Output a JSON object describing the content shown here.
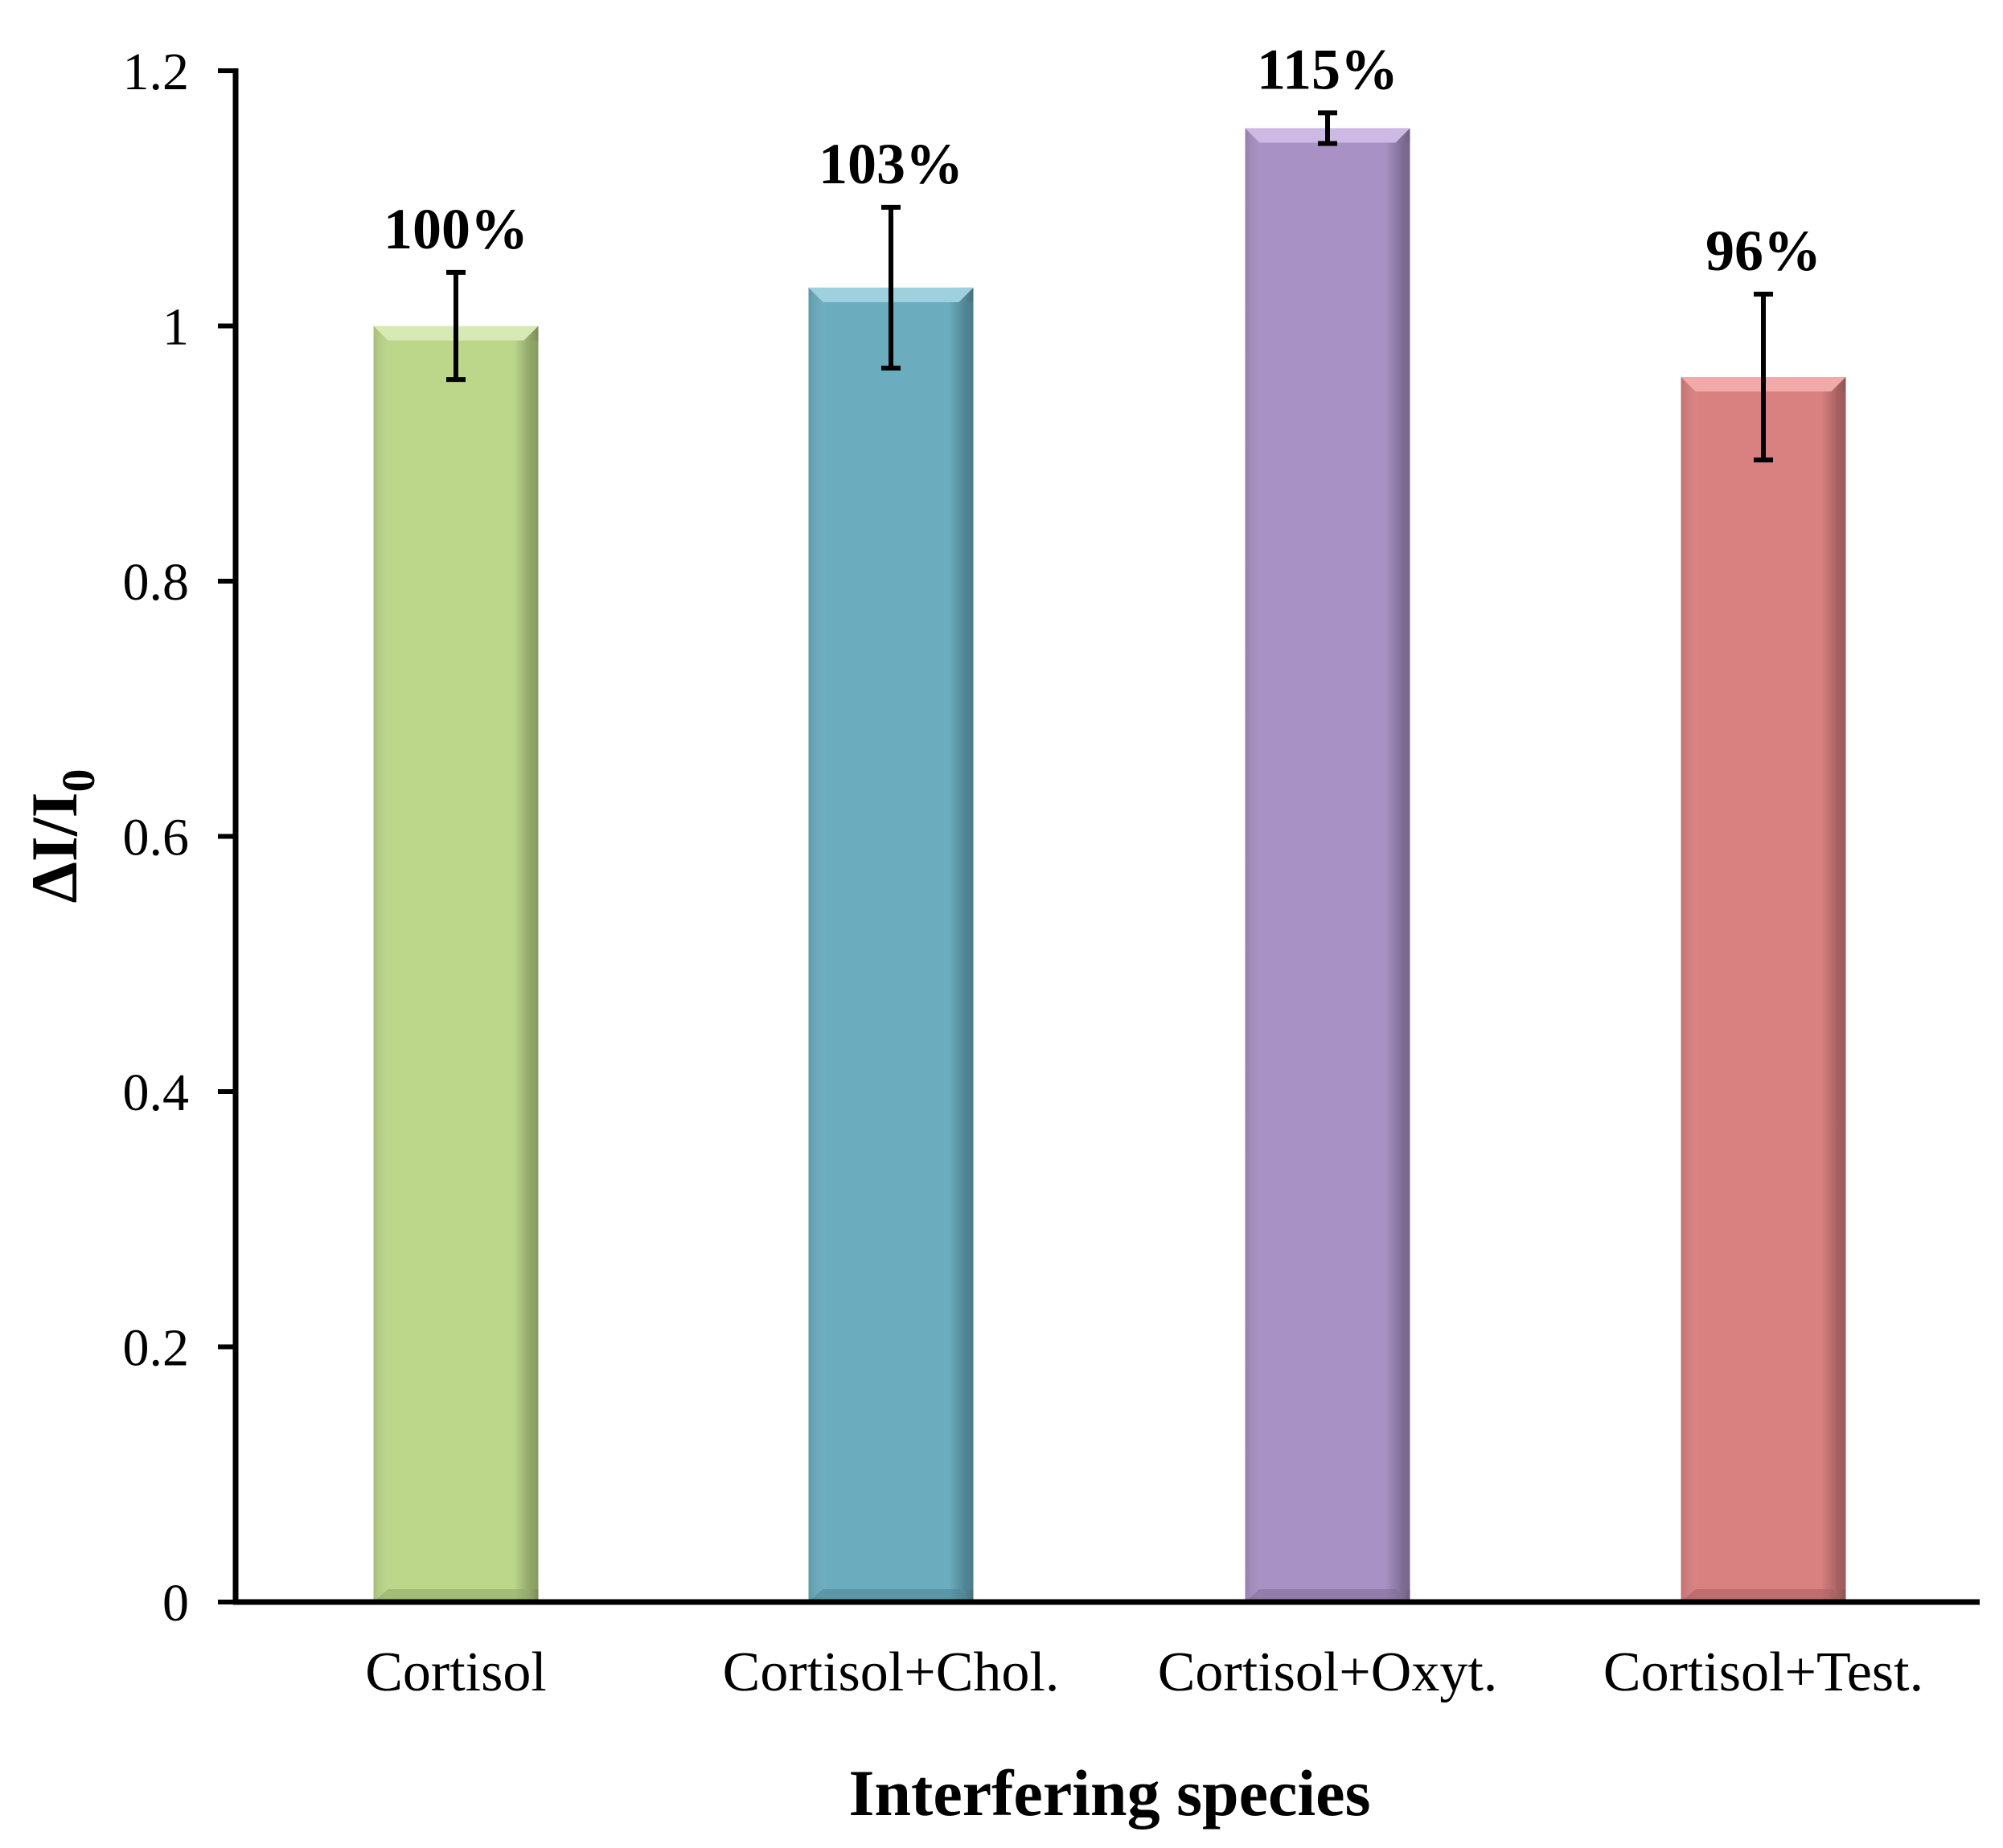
{
  "chart_data": {
    "type": "bar",
    "title": "",
    "xlabel": "Interfering species",
    "ylabel_main": "ΔI/I",
    "ylabel_sub": "0",
    "ylim": [
      0,
      1.2
    ],
    "yticks": [
      "0",
      "0.2",
      "0.4",
      "0.6",
      "0.8",
      "1",
      "1.2"
    ],
    "ytick_values": [
      0,
      0.2,
      0.4,
      0.6,
      0.8,
      1.0,
      1.2
    ],
    "categories": [
      "Cortisol",
      "Cortisol+Chol.",
      "Cortisol+Oxyt.",
      "Cortisol+Test."
    ],
    "values": [
      1.0,
      1.03,
      1.155,
      0.96
    ],
    "errors": [
      0.042,
      0.063,
      0.012,
      0.065
    ],
    "data_labels": [
      "100%",
      "103%",
      "115%",
      "96%"
    ],
    "bar_colors": [
      "#bcd78a",
      "#6badbf",
      "#a891c4",
      "#d98080"
    ],
    "bar_edge_colors": [
      "#8fa866",
      "#4d8596",
      "#7f6c98",
      "#a85f5f"
    ],
    "bar_top_colors": [
      "#d7e9b5",
      "#9ed0de",
      "#cdb9e3",
      "#f0aaaa"
    ],
    "grid": false,
    "legend": "none"
  }
}
